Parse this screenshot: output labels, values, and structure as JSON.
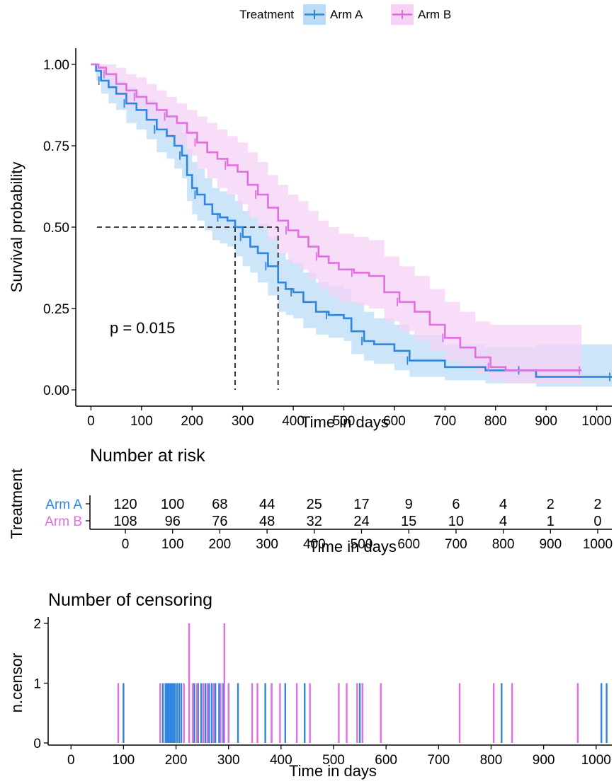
{
  "legend": {
    "title": "Treatment",
    "entries": [
      {
        "label": "Arm A",
        "color": "#2F86E0",
        "fill": "#BBDCF6"
      },
      {
        "label": "Arm B",
        "color": "#E16FE0",
        "fill": "#F6D2F6"
      }
    ]
  },
  "chart_data": [
    {
      "type": "line",
      "title": "",
      "xlabel": "Time in days",
      "ylabel": "Survival probability",
      "xlim": [
        -30,
        1030
      ],
      "ylim": [
        -0.05,
        1.05
      ],
      "xticks": [
        0,
        100,
        200,
        300,
        400,
        500,
        600,
        700,
        800,
        900,
        1000
      ],
      "yticks": [
        0.0,
        0.25,
        0.5,
        0.75,
        1.0
      ],
      "ytick_labels": [
        "0.00",
        "0.25",
        "0.50",
        "0.75",
        "1.00"
      ],
      "annotation": "p = 0.015",
      "median_lines": {
        "y": 0.5,
        "x": [
          285,
          370
        ]
      },
      "series": [
        {
          "name": "Arm A",
          "color": "#2F86E0",
          "band_color": "#BBDCF6",
          "x": [
            0,
            10,
            20,
            35,
            50,
            70,
            90,
            110,
            130,
            150,
            165,
            180,
            190,
            200,
            210,
            225,
            240,
            255,
            270,
            285,
            300,
            315,
            330,
            350,
            370,
            385,
            400,
            420,
            445,
            470,
            500,
            515,
            540,
            560,
            600,
            630,
            700,
            780,
            850,
            880,
            950,
            1030
          ],
          "y": [
            1.0,
            0.98,
            0.95,
            0.93,
            0.91,
            0.88,
            0.86,
            0.83,
            0.8,
            0.78,
            0.75,
            0.72,
            0.66,
            0.62,
            0.6,
            0.57,
            0.54,
            0.53,
            0.52,
            0.5,
            0.47,
            0.44,
            0.42,
            0.38,
            0.33,
            0.31,
            0.3,
            0.27,
            0.24,
            0.23,
            0.22,
            0.18,
            0.15,
            0.14,
            0.12,
            0.09,
            0.07,
            0.06,
            0.06,
            0.04,
            0.04,
            0.04
          ],
          "upper": [
            1.0,
            1.0,
            0.99,
            0.97,
            0.95,
            0.93,
            0.91,
            0.89,
            0.86,
            0.84,
            0.82,
            0.79,
            0.74,
            0.7,
            0.68,
            0.65,
            0.62,
            0.61,
            0.6,
            0.58,
            0.55,
            0.53,
            0.51,
            0.47,
            0.42,
            0.4,
            0.39,
            0.36,
            0.33,
            0.32,
            0.31,
            0.27,
            0.24,
            0.22,
            0.2,
            0.17,
            0.14,
            0.13,
            0.13,
            0.14,
            0.14,
            0.14
          ],
          "lower": [
            1.0,
            0.95,
            0.91,
            0.88,
            0.86,
            0.82,
            0.8,
            0.77,
            0.73,
            0.71,
            0.68,
            0.65,
            0.58,
            0.54,
            0.52,
            0.49,
            0.46,
            0.45,
            0.44,
            0.41,
            0.38,
            0.36,
            0.33,
            0.29,
            0.24,
            0.23,
            0.22,
            0.19,
            0.17,
            0.16,
            0.15,
            0.11,
            0.09,
            0.08,
            0.06,
            0.04,
            0.03,
            0.02,
            0.02,
            0.01,
            0.01,
            0.01
          ]
        },
        {
          "name": "Arm B",
          "color": "#E16FE0",
          "band_color": "#F6D2F6",
          "x": [
            0,
            15,
            30,
            50,
            70,
            90,
            110,
            130,
            150,
            170,
            190,
            210,
            230,
            250,
            270,
            290,
            310,
            330,
            350,
            370,
            390,
            410,
            430,
            450,
            470,
            490,
            520,
            550,
            580,
            610,
            640,
            670,
            700,
            730,
            760,
            790,
            820,
            880,
            970
          ],
          "y": [
            1.0,
            0.99,
            0.97,
            0.94,
            0.92,
            0.9,
            0.88,
            0.86,
            0.84,
            0.82,
            0.79,
            0.76,
            0.73,
            0.71,
            0.69,
            0.67,
            0.63,
            0.6,
            0.56,
            0.52,
            0.49,
            0.47,
            0.44,
            0.41,
            0.39,
            0.37,
            0.36,
            0.35,
            0.3,
            0.27,
            0.24,
            0.2,
            0.16,
            0.13,
            0.1,
            0.07,
            0.06,
            0.06,
            0.06
          ],
          "upper": [
            1.0,
            1.0,
            1.0,
            0.99,
            0.97,
            0.96,
            0.94,
            0.92,
            0.9,
            0.88,
            0.86,
            0.84,
            0.82,
            0.8,
            0.78,
            0.76,
            0.73,
            0.7,
            0.66,
            0.63,
            0.6,
            0.58,
            0.55,
            0.52,
            0.5,
            0.48,
            0.47,
            0.46,
            0.41,
            0.38,
            0.35,
            0.31,
            0.27,
            0.24,
            0.21,
            0.2,
            0.2,
            0.2,
            0.2
          ],
          "lower": [
            1.0,
            0.97,
            0.94,
            0.9,
            0.87,
            0.85,
            0.82,
            0.8,
            0.77,
            0.75,
            0.72,
            0.68,
            0.65,
            0.62,
            0.6,
            0.57,
            0.53,
            0.5,
            0.46,
            0.42,
            0.39,
            0.37,
            0.34,
            0.31,
            0.29,
            0.27,
            0.26,
            0.25,
            0.21,
            0.18,
            0.15,
            0.12,
            0.09,
            0.07,
            0.05,
            0.03,
            0.02,
            0.02,
            0.02
          ]
        }
      ]
    },
    {
      "type": "table",
      "title": "Number at risk",
      "xlabel": "Time in days",
      "ylabel": "Treatment",
      "x": [
        0,
        100,
        200,
        300,
        400,
        500,
        600,
        700,
        800,
        900,
        1000
      ],
      "rows": [
        {
          "name": "Arm A",
          "color": "#2F86E0",
          "values": [
            120,
            100,
            68,
            44,
            25,
            17,
            9,
            6,
            4,
            2,
            2
          ]
        },
        {
          "name": "Arm B",
          "color": "#E16FE0",
          "values": [
            108,
            96,
            76,
            48,
            32,
            24,
            15,
            10,
            4,
            1,
            0
          ]
        }
      ]
    },
    {
      "type": "bar",
      "title": "Number of censoring",
      "xlabel": "Time in days",
      "ylabel": "n.censor",
      "xlim": [
        -30,
        1030
      ],
      "ylim": [
        0,
        2
      ],
      "xticks": [
        0,
        100,
        200,
        300,
        400,
        500,
        600,
        700,
        800,
        900,
        1000
      ],
      "yticks": [
        0,
        1,
        2
      ],
      "series": [
        {
          "name": "Arm A",
          "color": "#2F86E0",
          "x": [
            100,
            175,
            180,
            183,
            186,
            189,
            192,
            195,
            198,
            202,
            206,
            210,
            235,
            242,
            248,
            256,
            263,
            268,
            275,
            282,
            290,
            300,
            318,
            370,
            382,
            408,
            445,
            550,
            820,
            1010,
            1020
          ],
          "values": [
            1,
            1,
            1,
            1,
            1,
            1,
            1,
            1,
            1,
            1,
            1,
            1,
            1,
            1,
            1,
            1,
            1,
            1,
            1,
            1,
            1,
            1,
            1,
            1,
            1,
            1,
            1,
            1,
            1,
            1,
            1
          ]
        },
        {
          "name": "Arm B",
          "color": "#E16FE0",
          "x": [
            90,
            170,
            215,
            225,
            232,
            240,
            252,
            260,
            272,
            285,
            292,
            300,
            345,
            355,
            382,
            398,
            430,
            455,
            510,
            525,
            545,
            555,
            590,
            740,
            805,
            840,
            965
          ],
          "values": [
            1,
            1,
            1,
            2,
            1,
            1,
            1,
            1,
            1,
            1,
            2,
            1,
            1,
            1,
            1,
            1,
            1,
            1,
            1,
            1,
            1,
            1,
            1,
            1,
            1,
            1,
            1
          ]
        }
      ]
    }
  ]
}
